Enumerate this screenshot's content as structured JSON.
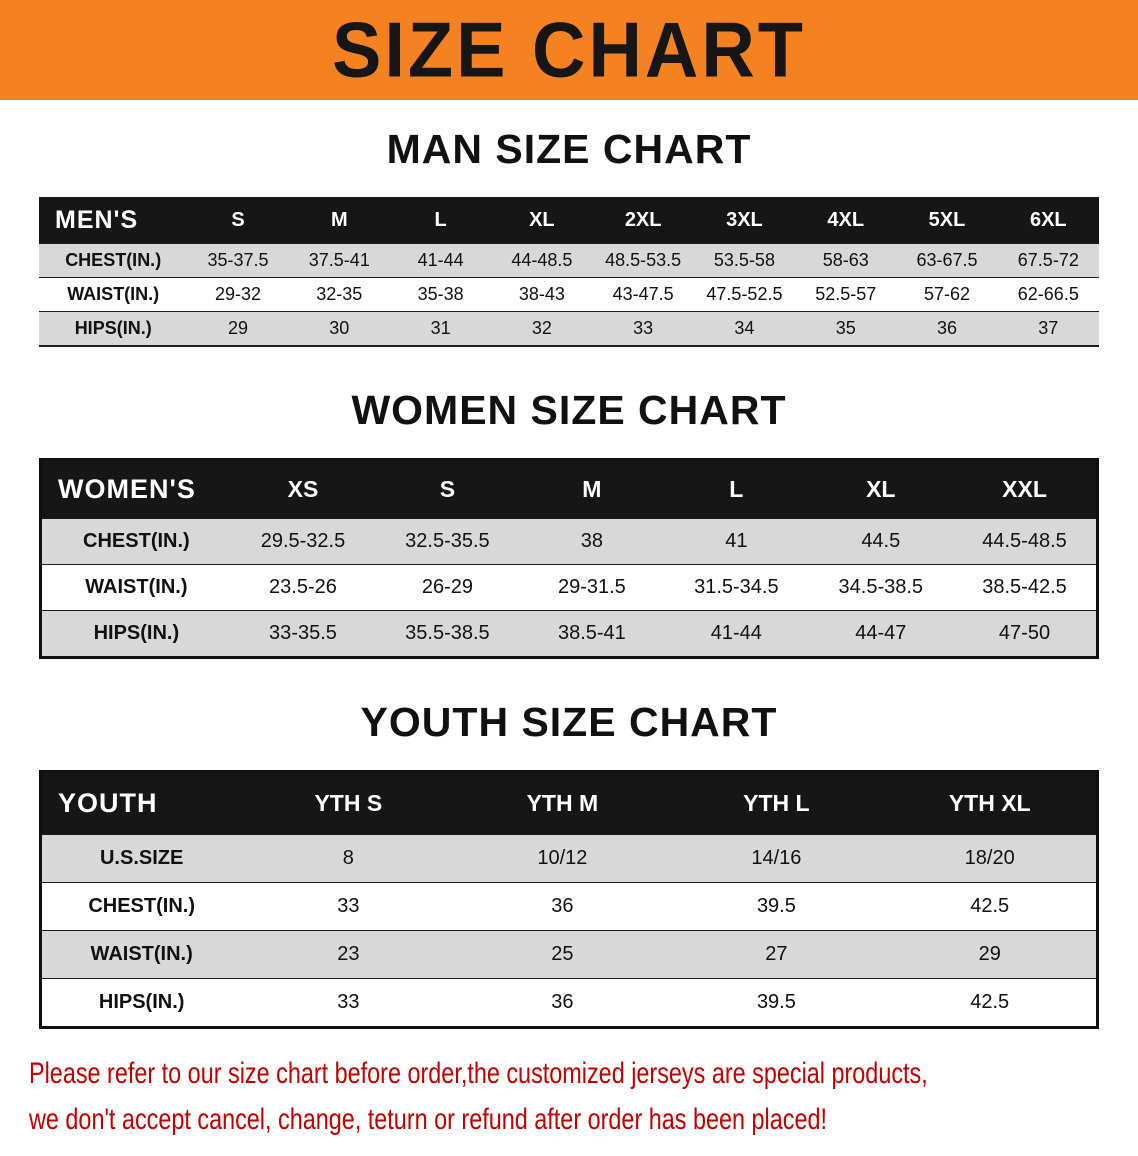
{
  "banner": {
    "title": "SIZE CHART"
  },
  "chart_data": [
    {
      "type": "table",
      "title": "MAN SIZE CHART",
      "header": [
        "MEN'S",
        "S",
        "M",
        "L",
        "XL",
        "2XL",
        "3XL",
        "4XL",
        "5XL",
        "6XL"
      ],
      "rows": [
        [
          "CHEST(IN.)",
          "35-37.5",
          "37.5-41",
          "41-44",
          "44-48.5",
          "48.5-53.5",
          "53.5-58",
          "58-63",
          "63-67.5",
          "67.5-72"
        ],
        [
          "WAIST(IN.)",
          "29-32",
          "32-35",
          "35-38",
          "38-43",
          "43-47.5",
          "47.5-52.5",
          "52.5-57",
          "57-62",
          "62-66.5"
        ],
        [
          "HIPS(IN.)",
          "29",
          "30",
          "31",
          "32",
          "33",
          "34",
          "35",
          "36",
          "37"
        ]
      ]
    },
    {
      "type": "table",
      "title": "WOMEN SIZE CHART",
      "header": [
        "WOMEN'S",
        "XS",
        "S",
        "M",
        "L",
        "XL",
        "XXL"
      ],
      "rows": [
        [
          "CHEST(IN.)",
          "29.5-32.5",
          "32.5-35.5",
          "38",
          "41",
          "44.5",
          "44.5-48.5"
        ],
        [
          "WAIST(IN.)",
          "23.5-26",
          "26-29",
          "29-31.5",
          "31.5-34.5",
          "34.5-38.5",
          "38.5-42.5"
        ],
        [
          "HIPS(IN.)",
          "33-35.5",
          "35.5-38.5",
          "38.5-41",
          "41-44",
          "44-47",
          "47-50"
        ]
      ]
    },
    {
      "type": "table",
      "title": "YOUTH SIZE CHART",
      "header": [
        "YOUTH",
        "YTH S",
        "YTH M",
        "YTH L",
        "YTH XL"
      ],
      "rows": [
        [
          "U.S.SIZE",
          "8",
          "10/12",
          "14/16",
          "18/20"
        ],
        [
          "CHEST(IN.)",
          "33",
          "36",
          "39.5",
          "42.5"
        ],
        [
          "WAIST(IN.)",
          "23",
          "25",
          "27",
          "29"
        ],
        [
          "HIPS(IN.)",
          "33",
          "36",
          "39.5",
          "42.5"
        ]
      ]
    }
  ],
  "disclaimer": {
    "line1": "Please refer to our size chart before order,the customized jerseys are special products,",
    "line2": "we don't accept cancel, change, teturn or refund after order has been placed!"
  },
  "colors": {
    "banner_bg": "#f58220",
    "banner_text": "#161616",
    "header_bg": "#161616",
    "header_text": "#ffffff",
    "row_alt_bg": "#d8d8d8",
    "disclaimer_text": "#c00000"
  }
}
